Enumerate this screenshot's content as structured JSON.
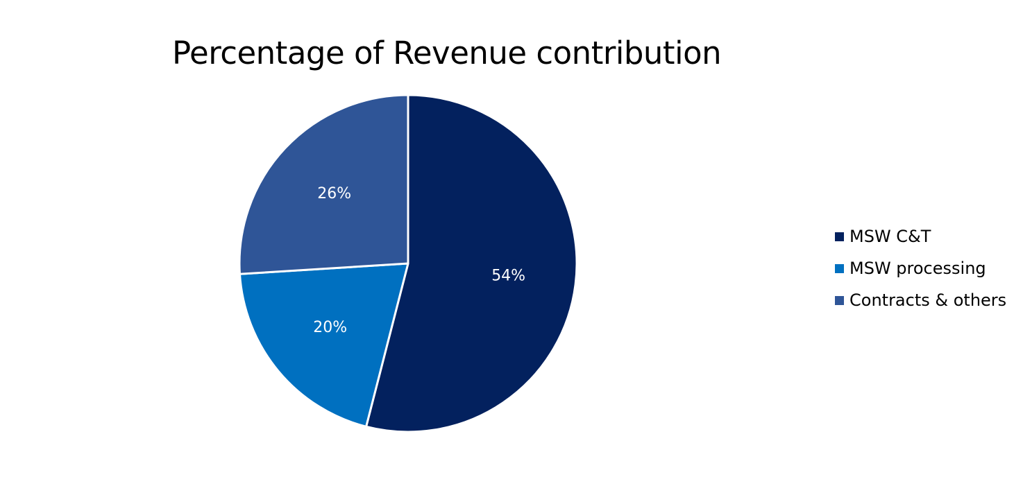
{
  "chart_data": {
    "type": "pie",
    "title": "Percentage of Revenue contribution",
    "categories": [
      "MSW C&T",
      "MSW processing",
      "Contracts & others"
    ],
    "values": [
      54,
      20,
      26
    ],
    "data_labels": [
      "54%",
      "20%",
      "26%"
    ],
    "colors": [
      "#03215e",
      "#0070c0",
      "#2f5597"
    ],
    "start_angle_deg": 0,
    "direction": "clockwise",
    "legend": {
      "placement": "right",
      "entries": [
        "MSW C&T",
        "MSW processing",
        "Contracts & others"
      ]
    }
  }
}
